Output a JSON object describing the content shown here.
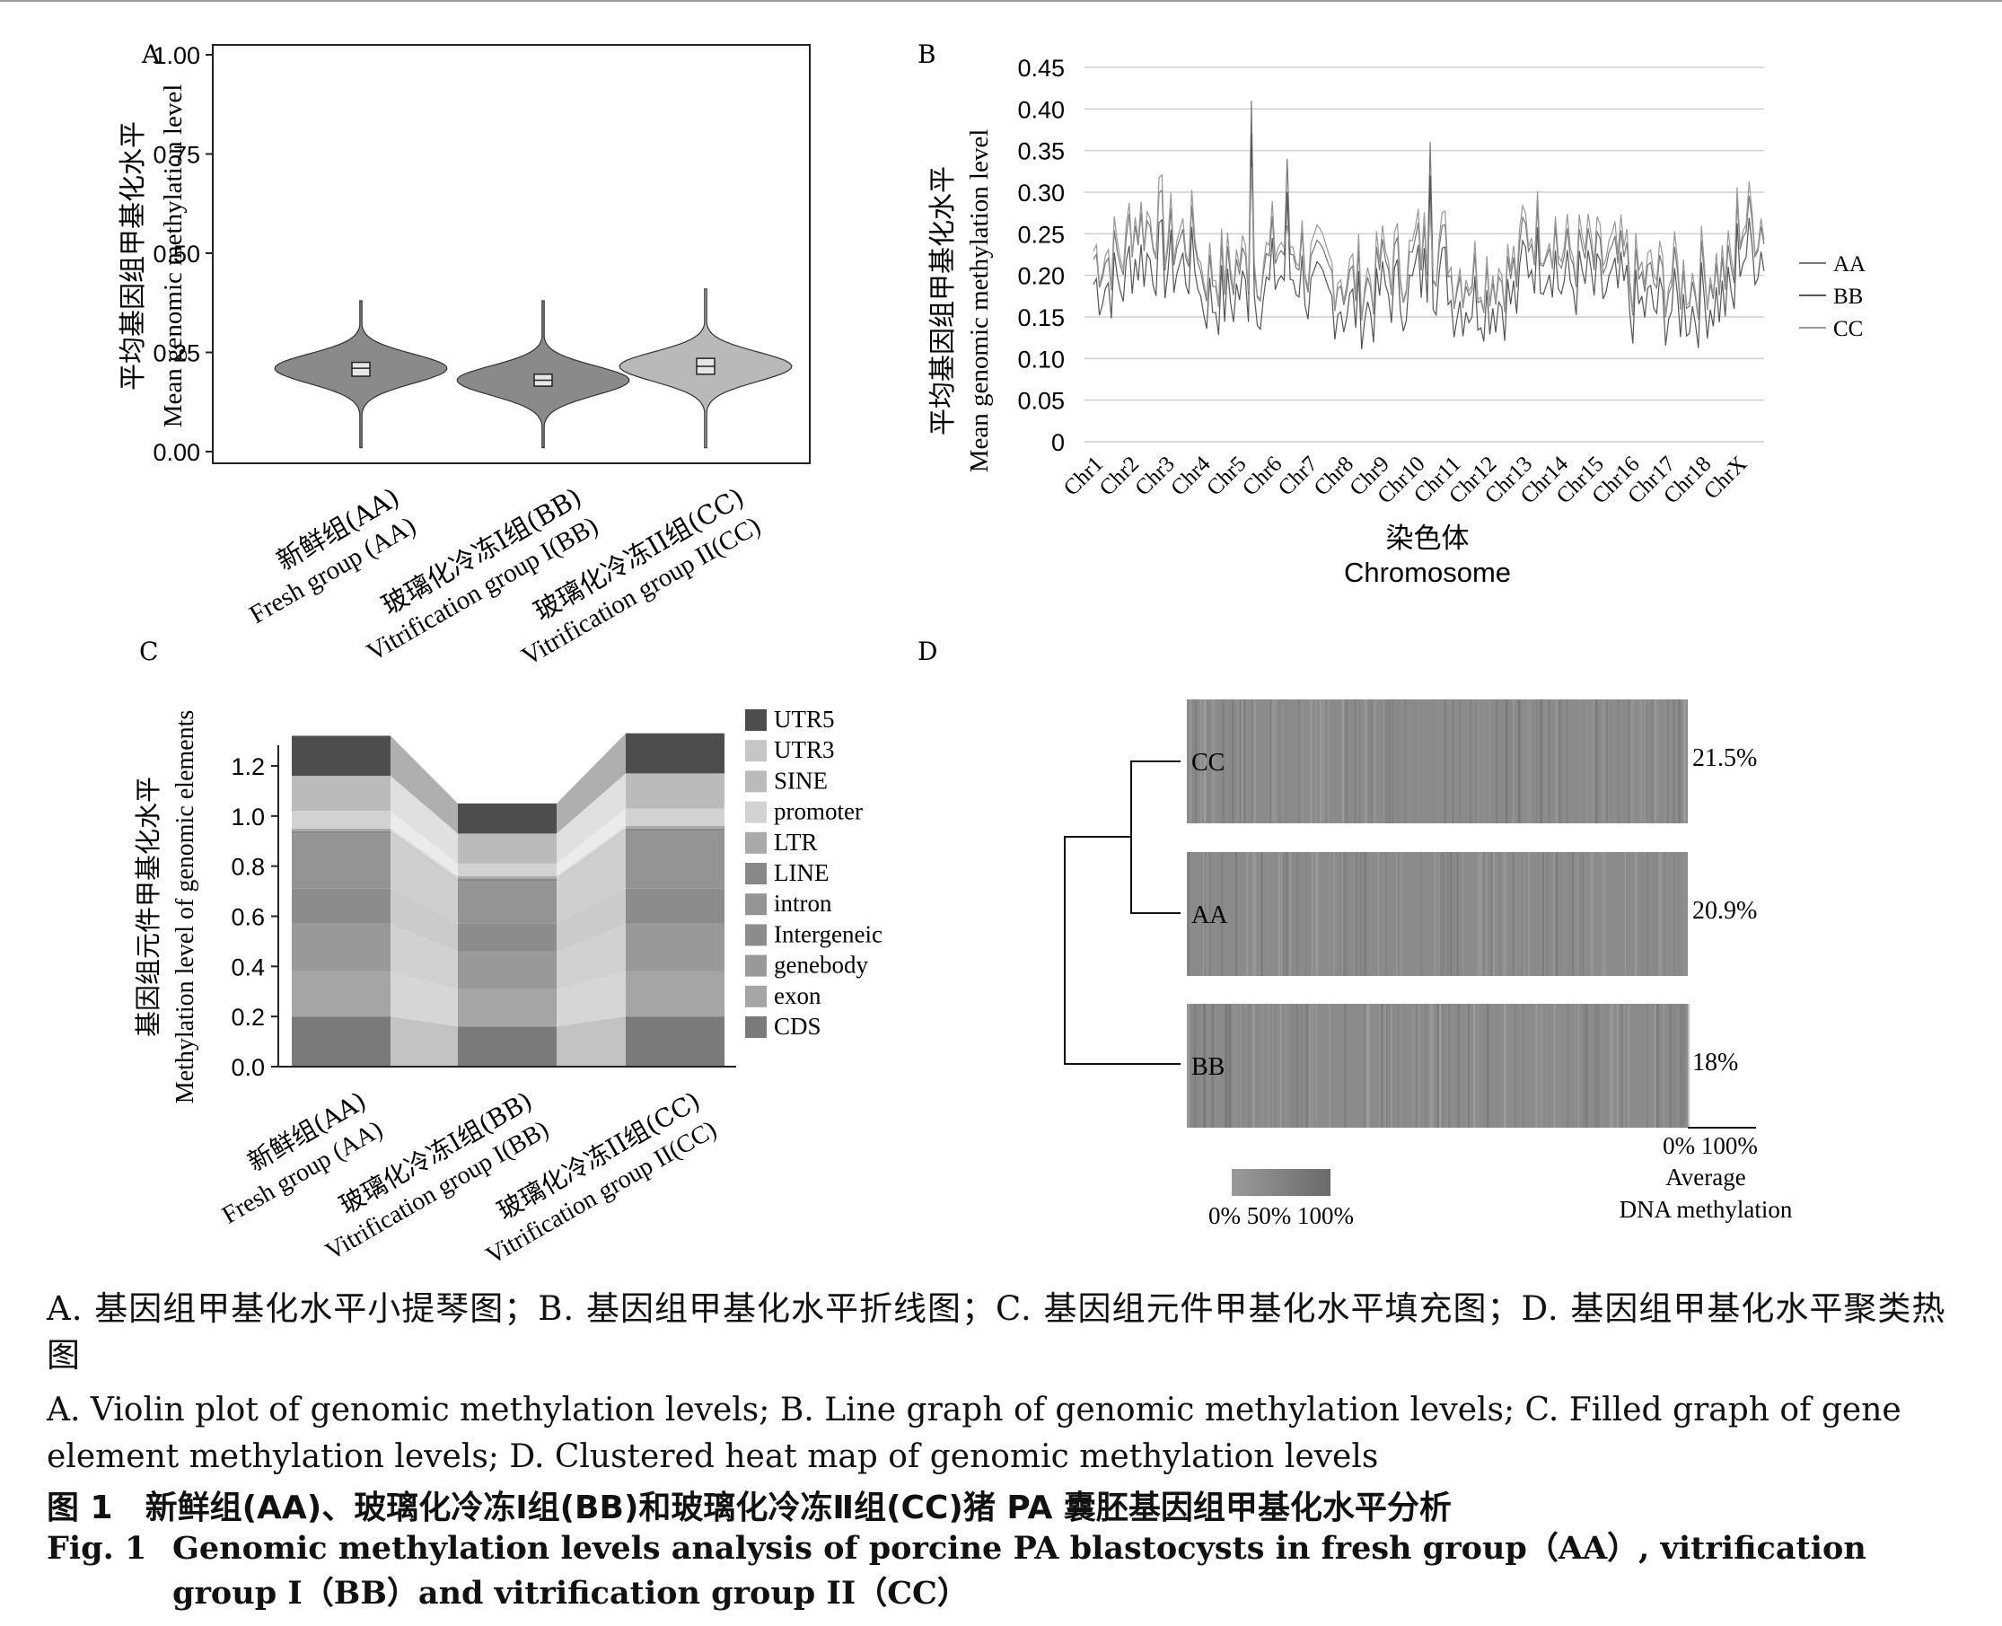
{
  "panels": {
    "A": {
      "letter": "A",
      "ylabel_cn": "平均基因组甲基化水平",
      "ylabel_en": "Mean genomic methylation level",
      "yticks": [
        "0.00",
        "0.25",
        "0.50",
        "0.75",
        "1.00"
      ],
      "xlabels": [
        {
          "cn": "新鲜组(AA)",
          "en": "Fresh group (AA)"
        },
        {
          "cn": "玻璃化冷冻I组(BB)",
          "en": "Vitrification group I(BB)"
        },
        {
          "cn": "玻璃化冷冻II组(CC)",
          "en": "Vitrification group II(CC)"
        }
      ]
    },
    "B": {
      "letter": "B",
      "ylabel_cn": "平均基因组甲基化水平",
      "ylabel_en": "Mean genomic methylation level",
      "xlabel_cn": "染色体",
      "xlabel_en": "Chromosome",
      "yticks": [
        "0",
        "0.05",
        "0.10",
        "0.15",
        "0.20",
        "0.25",
        "0.30",
        "0.35",
        "0.40",
        "0.45"
      ],
      "legend": [
        "AA",
        "BB",
        "CC"
      ]
    },
    "C": {
      "letter": "C",
      "ylabel_cn": "基因组元件甲基化水平",
      "ylabel_en": "Methylation level of genomic elements",
      "yticks": [
        "0.0",
        "0.2",
        "0.4",
        "0.6",
        "0.8",
        "1.0",
        "1.2"
      ],
      "xlabels": [
        {
          "cn": "新鲜组(AA)",
          "en": "Fresh group (AA)"
        },
        {
          "cn": "玻璃化冷冻I组(BB)",
          "en": "Vitrification group I(BB)"
        },
        {
          "cn": "玻璃化冷冻II组(CC)",
          "en": "Vitrification group II(CC)"
        }
      ]
    },
    "D": {
      "letter": "D",
      "rows": [
        {
          "name": "CC",
          "pct": "21.5%"
        },
        {
          "name": "AA",
          "pct": "20.9%"
        },
        {
          "name": "BB",
          "pct": "18%"
        }
      ],
      "avg_scale": "0% 100%",
      "avg_label_1": "Average",
      "avg_label_2": "DNA methylation",
      "colorbar_label": "0% 50% 100%"
    }
  },
  "chart_data": [
    {
      "panel": "A",
      "type": "violin",
      "categories": [
        "AA",
        "BB",
        "CC"
      ],
      "medians": [
        0.21,
        0.18,
        0.215
      ],
      "q1": [
        0.19,
        0.165,
        0.195
      ],
      "q3": [
        0.225,
        0.195,
        0.235
      ],
      "min": [
        0.01,
        0.01,
        0.01
      ],
      "max": [
        0.38,
        0.38,
        0.41
      ],
      "colors": [
        "#8a8a8a",
        "#8a8a8a",
        "#b9b9b9"
      ],
      "ylim": [
        0,
        1.0
      ]
    },
    {
      "panel": "B",
      "type": "line",
      "categories": [
        "Chr1",
        "Chr2",
        "Chr3",
        "Chr4",
        "Chr5",
        "Chr6",
        "Chr7",
        "Chr8",
        "Chr9",
        "Chr10",
        "Chr11",
        "Chr12",
        "Chr13",
        "Chr14",
        "Chr15",
        "Chr16",
        "Chr17",
        "Chr18",
        "ChrX"
      ],
      "series": [
        {
          "name": "AA",
          "values": [
            0.22,
            0.26,
            0.24,
            0.2,
            0.21,
            0.23,
            0.2,
            0.19,
            0.21,
            0.23,
            0.2,
            0.2,
            0.25,
            0.22,
            0.21,
            0.19,
            0.19,
            0.2,
            0.26
          ],
          "color": "#777777"
        },
        {
          "name": "BB",
          "values": [
            0.19,
            0.22,
            0.21,
            0.17,
            0.18,
            0.2,
            0.17,
            0.16,
            0.18,
            0.2,
            0.17,
            0.17,
            0.22,
            0.19,
            0.18,
            0.16,
            0.16,
            0.17,
            0.23
          ],
          "color": "#555555"
        },
        {
          "name": "CC",
          "values": [
            0.23,
            0.27,
            0.25,
            0.21,
            0.22,
            0.24,
            0.21,
            0.2,
            0.22,
            0.24,
            0.21,
            0.21,
            0.26,
            0.23,
            0.22,
            0.2,
            0.2,
            0.21,
            0.27
          ],
          "color": "#999999"
        }
      ],
      "peaks": [
        {
          "category": "Chr5",
          "value": 0.41
        },
        {
          "category": "Chr6",
          "value": 0.34
        },
        {
          "category": "Chr10",
          "value": 0.36
        }
      ],
      "ylim": [
        0,
        0.45
      ]
    },
    {
      "panel": "C",
      "type": "area",
      "categories": [
        "AA",
        "BB",
        "CC"
      ],
      "series": [
        {
          "name": "CDS",
          "values": [
            0.2,
            0.16,
            0.2
          ],
          "color": "#7a7a7a"
        },
        {
          "name": "exon",
          "values": [
            0.18,
            0.15,
            0.18
          ],
          "color": "#a5a5a5"
        },
        {
          "name": "genebody",
          "values": [
            0.19,
            0.15,
            0.19
          ],
          "color": "#999999"
        },
        {
          "name": "Intergeneic",
          "values": [
            0.14,
            0.11,
            0.14
          ],
          "color": "#8c8c8c"
        },
        {
          "name": "intron",
          "values": [
            0.22,
            0.17,
            0.23
          ],
          "color": "#949494"
        },
        {
          "name": "LINE",
          "values": [
            0.01,
            0.01,
            0.01
          ],
          "color": "#888888"
        },
        {
          "name": "LTR",
          "values": [
            0.01,
            0.01,
            0.01
          ],
          "color": "#aaaaaa"
        },
        {
          "name": "promoter",
          "values": [
            0.07,
            0.05,
            0.07
          ],
          "color": "#d2d2d2"
        },
        {
          "name": "SINE",
          "values": [
            0.14,
            0.12,
            0.14
          ],
          "color": "#bbbbbb"
        },
        {
          "name": "UTR3",
          "values": [
            0.0,
            0.0,
            0.0
          ],
          "color": "#c6c6c6"
        },
        {
          "name": "UTR5",
          "values": [
            0.16,
            0.12,
            0.16
          ],
          "color": "#4d4d4d"
        }
      ],
      "totals": [
        1.32,
        1.05,
        1.33
      ],
      "ylim": [
        0,
        1.35
      ]
    },
    {
      "panel": "D",
      "type": "heatmap",
      "rows": [
        "CC",
        "AA",
        "BB"
      ],
      "average_methylation": [
        21.5,
        20.9,
        18.0
      ],
      "colors": {
        "low": "#9c9c9c",
        "high": "#6a6a6a"
      }
    }
  ],
  "captions": {
    "cn": "A. 基因组甲基化水平小提琴图；B. 基因组甲基化水平折线图；C. 基因组元件甲基化水平填充图；D. 基因组甲基化水平聚类热图",
    "en": "A. Violin plot of genomic methylation levels; B. Line graph of genomic methylation levels; C. Filled graph of gene element methylation levels; D. Clustered heat map of genomic methylation levels",
    "fig_cn": "图 1　新鲜组(AA)、玻璃化冷冻Ⅰ组(BB)和玻璃化冷冻Ⅱ组(CC)猪 PA 囊胚基因组甲基化水平分析",
    "fig_en_label": "Fig. 1",
    "fig_en_text": "Genomic methylation levels analysis of porcine PA blastocysts in fresh group（AA）, vitrification group I（BB）and vitrification group II（CC）"
  }
}
